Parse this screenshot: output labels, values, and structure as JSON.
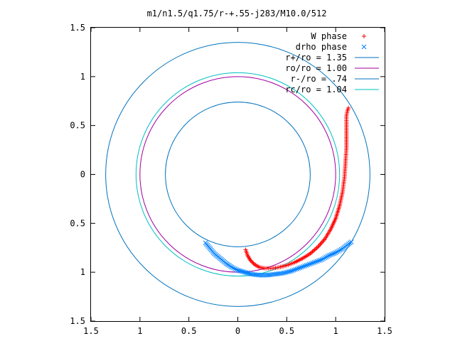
{
  "chart_data": {
    "type": "scatter",
    "title": "m1/n1.5/q1.75/r-+.55-j283/M10.0/512",
    "xlim": [
      -1.5,
      1.5
    ],
    "ylim": [
      -1.5,
      1.5
    ],
    "x_ticks": [
      -1.5,
      -1,
      -0.5,
      0,
      0.5,
      1,
      1.5
    ],
    "x_tick_labels": [
      "1.5",
      "1",
      "0.5",
      "0",
      "0.5",
      "1",
      "1.5"
    ],
    "y_ticks": [
      1.5,
      1,
      0.5,
      0,
      -0.5,
      -1,
      -1.5
    ],
    "y_tick_labels": [
      "1.5",
      "1",
      "0.5",
      "0",
      "0.5",
      "1",
      "1.5"
    ],
    "grid": false,
    "legend_position": "top-right",
    "series": [
      {
        "name": "W phase",
        "marker": "+",
        "color": "#ff0000",
        "points": [
          [
            0.08,
            -0.77
          ],
          [
            0.1,
            -0.83
          ],
          [
            0.13,
            -0.88
          ],
          [
            0.17,
            -0.92
          ],
          [
            0.22,
            -0.95
          ],
          [
            0.28,
            -0.96
          ],
          [
            0.35,
            -0.96
          ],
          [
            0.42,
            -0.95
          ],
          [
            0.5,
            -0.93
          ],
          [
            0.58,
            -0.9
          ],
          [
            0.66,
            -0.86
          ],
          [
            0.74,
            -0.81
          ],
          [
            0.82,
            -0.74
          ],
          [
            0.89,
            -0.66
          ],
          [
            0.95,
            -0.56
          ],
          [
            1.0,
            -0.45
          ],
          [
            1.04,
            -0.32
          ],
          [
            1.07,
            -0.18
          ],
          [
            1.09,
            -0.03
          ],
          [
            1.1,
            0.12
          ],
          [
            1.11,
            0.27
          ],
          [
            1.11,
            0.41
          ],
          [
            1.11,
            0.52
          ],
          [
            1.11,
            0.6
          ],
          [
            1.12,
            0.65
          ],
          [
            1.13,
            0.68
          ]
        ]
      },
      {
        "name": "drho phase",
        "marker": "x",
        "color": "#0080ff",
        "points": [
          [
            -0.33,
            -0.7
          ],
          [
            -0.29,
            -0.75
          ],
          [
            -0.24,
            -0.81
          ],
          [
            -0.18,
            -0.86
          ],
          [
            -0.12,
            -0.91
          ],
          [
            -0.06,
            -0.95
          ],
          [
            0.0,
            -0.98
          ],
          [
            0.07,
            -1.0
          ],
          [
            0.14,
            -1.02
          ],
          [
            0.22,
            -1.03
          ],
          [
            0.3,
            -1.03
          ],
          [
            0.38,
            -1.02
          ],
          [
            0.46,
            -1.01
          ],
          [
            0.54,
            -0.99
          ],
          [
            0.62,
            -0.96
          ],
          [
            0.7,
            -0.93
          ],
          [
            0.78,
            -0.9
          ],
          [
            0.86,
            -0.87
          ],
          [
            0.93,
            -0.83
          ],
          [
            1.0,
            -0.8
          ],
          [
            1.07,
            -0.76
          ],
          [
            1.12,
            -0.72
          ],
          [
            1.16,
            -0.69
          ]
        ]
      },
      {
        "name": "r+/ro = 1.35",
        "type": "circle",
        "radius": 1.35,
        "color": "#0072bd"
      },
      {
        "name": "ro/ro = 1.00",
        "type": "circle",
        "radius": 1.0,
        "color": "#a000a0"
      },
      {
        "name": "r-/ro = .74",
        "type": "circle",
        "radius": 0.74,
        "color": "#0072bd"
      },
      {
        "name": "rc/ro = 1.04",
        "type": "circle",
        "radius": 1.04,
        "color": "#00c0c0"
      }
    ]
  }
}
